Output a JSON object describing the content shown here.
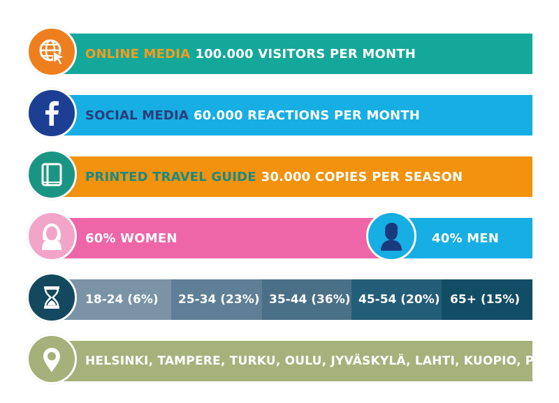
{
  "colors": {
    "online": "#14a89a",
    "online_accent": "#f29d1d",
    "online_circle": "#ee7f1f",
    "social": "#16aee3",
    "social_accent": "#2a3b7a",
    "social_circle": "#1c3f94",
    "print": "#f2920d",
    "print_accent": "#1a8a84",
    "print_circle": "#1b9583",
    "women": "#ee66a8",
    "women_circle": "#f3a5c8",
    "men": "#16aee3",
    "age_circle": "#14485e",
    "age_segments": [
      "#7a94a6",
      "#5e7f95",
      "#4a7087",
      "#235e79",
      "#124d66"
    ],
    "cities": "#a7b17b",
    "cities_circle": "#a6b07a"
  },
  "rows": {
    "online": {
      "highlight": "ONLINE MEDIA",
      "text": "100.000 VISITORS PER MONTH",
      "icon": "web-cursor-icon"
    },
    "social": {
      "highlight": "SOCIAL MEDIA",
      "text": "60.000 REACTIONS PER MONTH",
      "icon": "facebook-icon"
    },
    "print": {
      "highlight": "PRINTED TRAVEL GUIDE",
      "text": "30.000 COPIES PER SEASON",
      "icon": "book-icon"
    }
  },
  "gender": {
    "women_label": "60% WOMEN",
    "men_label": "40% MEN",
    "women_share": 60,
    "men_share": 40,
    "women_icon": "woman-avatar-icon",
    "men_icon": "man-avatar-icon"
  },
  "age": {
    "icon": "hourglass-icon",
    "segments": [
      {
        "label": "18-24 (6%)",
        "share": 6
      },
      {
        "label": "25-34 (23%)",
        "share": 23
      },
      {
        "label": "35-44 (36%)",
        "share": 36
      },
      {
        "label": "45-54 (20%)",
        "share": 20
      },
      {
        "label": "65+ (15%)",
        "share": 15
      }
    ]
  },
  "cities": {
    "icon": "location-pin-icon",
    "text": "HELSINKI, TAMPERE, TURKU, OULU, JYVÄSKYLÄ, LAHTI, KUOPIO, PORI"
  }
}
